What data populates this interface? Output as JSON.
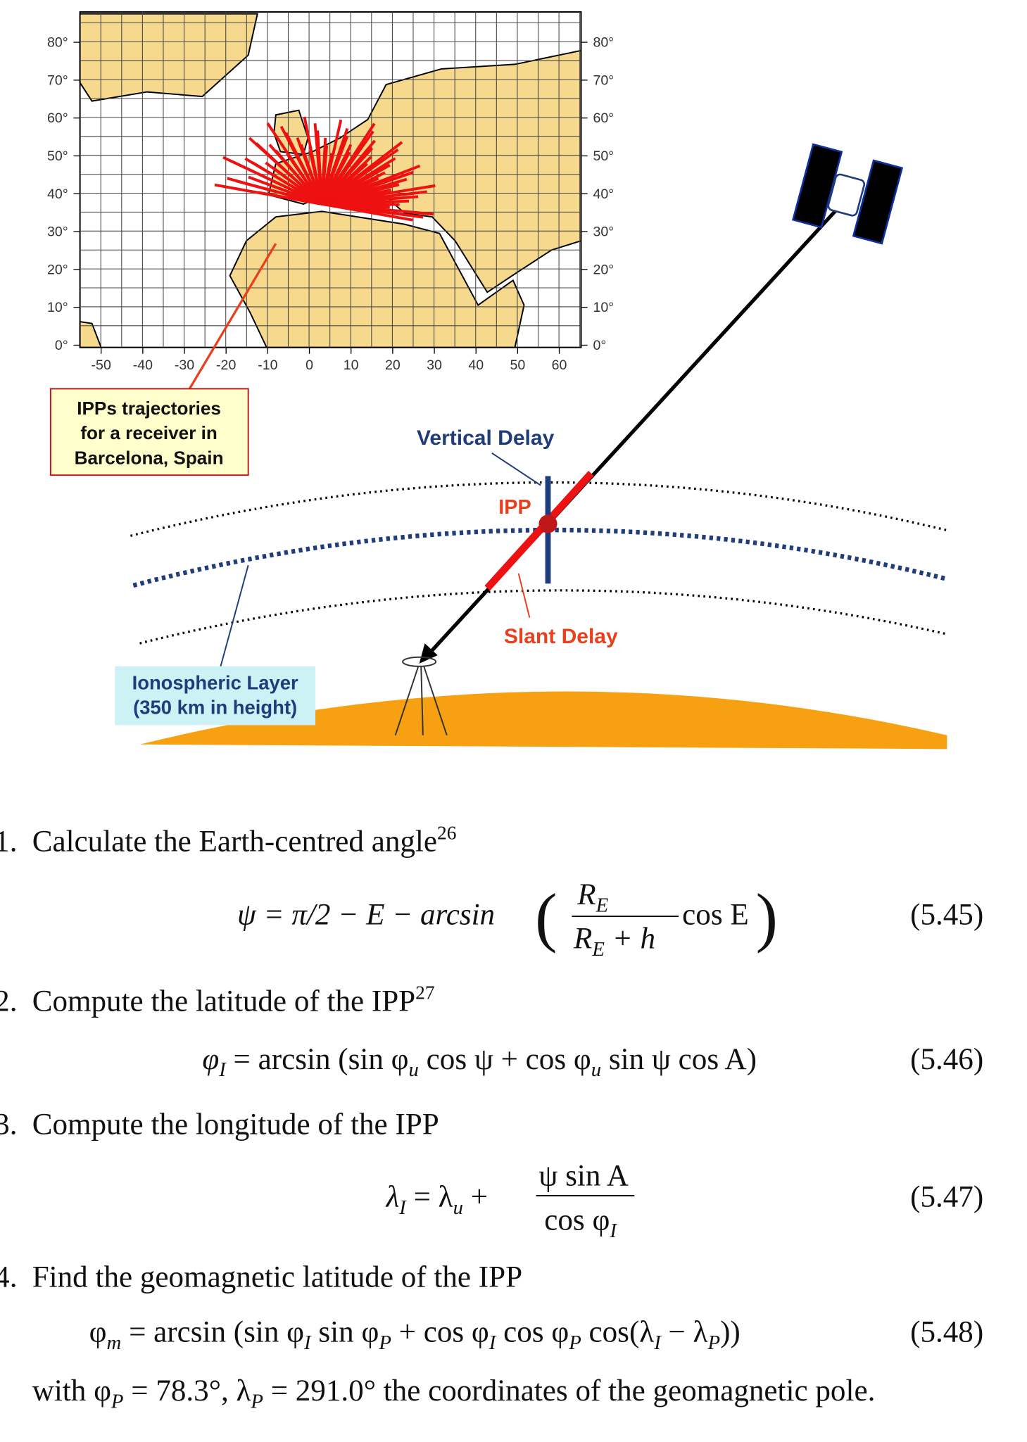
{
  "map": {
    "lat_labels": [
      "80°",
      "70°",
      "60°",
      "50°",
      "40°",
      "30°",
      "20°",
      "10°",
      "0°"
    ],
    "lon_labels": [
      "-50",
      "-40",
      "-30",
      "-20",
      "-10",
      "0",
      "10",
      "20",
      "30",
      "40",
      "50",
      "60"
    ]
  },
  "callouts": {
    "ipp_trajectories": [
      "IPPs trajectories",
      "for a receiver in",
      "Barcelona, Spain"
    ],
    "vertical_delay": "Vertical Delay",
    "ipp": "IPP",
    "slant_delay": "Slant Delay",
    "ionospheric_layer": [
      "Ionospheric Layer",
      "(350 km in height)"
    ]
  },
  "steps": [
    {
      "number": "1.",
      "text": "Calculate the Earth-centred angle",
      "footnote": "26"
    },
    {
      "number": "2.",
      "text": "Compute the latitude of the IPP",
      "footnote": "27"
    },
    {
      "number": "3.",
      "text": "Compute the longitude of the IPP"
    },
    {
      "number": "4.",
      "text": "Find the geomagnetic latitude of the IPP"
    }
  ],
  "equations": [
    {
      "parts": [
        "ψ = π/2 − E − arcsin",
        "(",
        "R",
        "E",
        "R",
        "E",
        " + h",
        "cos E",
        ")"
      ],
      "number": "(5.45)"
    },
    {
      "parts": [
        "φ",
        "I",
        " = arcsin (sin φ",
        "u",
        " cos ψ + cos φ",
        "u",
        " sin ψ cos A)"
      ],
      "number": "(5.46)"
    },
    {
      "parts": [
        "λ",
        "I",
        " = λ",
        "u",
        " +",
        "ψ sin A",
        "cos φ",
        "I"
      ],
      "number": "(5.47)"
    },
    {
      "parts": [
        "φ",
        "m",
        " = arcsin (sin φ",
        "I",
        " sin φ",
        "P",
        " + cos φ",
        "I",
        " cos φ",
        "P",
        " cos(λ",
        "I",
        " − λ",
        "P",
        "))"
      ],
      "number": "(5.48)"
    }
  ],
  "pole_note": [
    "with φ",
    "P",
    " = 78.3°, λ",
    "P",
    " = 291.0° the coordinates of the geomagnetic pole."
  ]
}
